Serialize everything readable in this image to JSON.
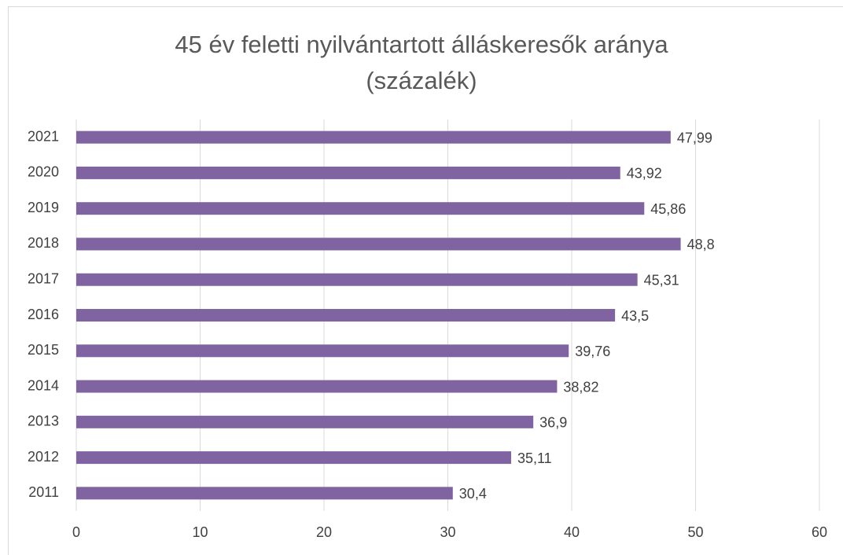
{
  "chart_data": {
    "type": "bar",
    "orientation": "horizontal",
    "title": "45 év feletti nyilvántartott álláskeresők aránya (százalék)",
    "categories": [
      "2011",
      "2012",
      "2013",
      "2014",
      "2015",
      "2016",
      "2017",
      "2018",
      "2019",
      "2020",
      "2021"
    ],
    "values": [
      30.4,
      35.11,
      36.9,
      38.82,
      39.76,
      43.5,
      45.31,
      48.8,
      45.86,
      43.92,
      47.99
    ],
    "value_labels": [
      "30,4",
      "35,11",
      "36,9",
      "38,82",
      "39,76",
      "43,5",
      "45,31",
      "48,8",
      "45,86",
      "43,92",
      "47,99"
    ],
    "color": "#8064a2",
    "xlim": [
      0,
      60
    ],
    "xticks": [
      0,
      10,
      20,
      30,
      40,
      50,
      60
    ],
    "grid": true
  }
}
